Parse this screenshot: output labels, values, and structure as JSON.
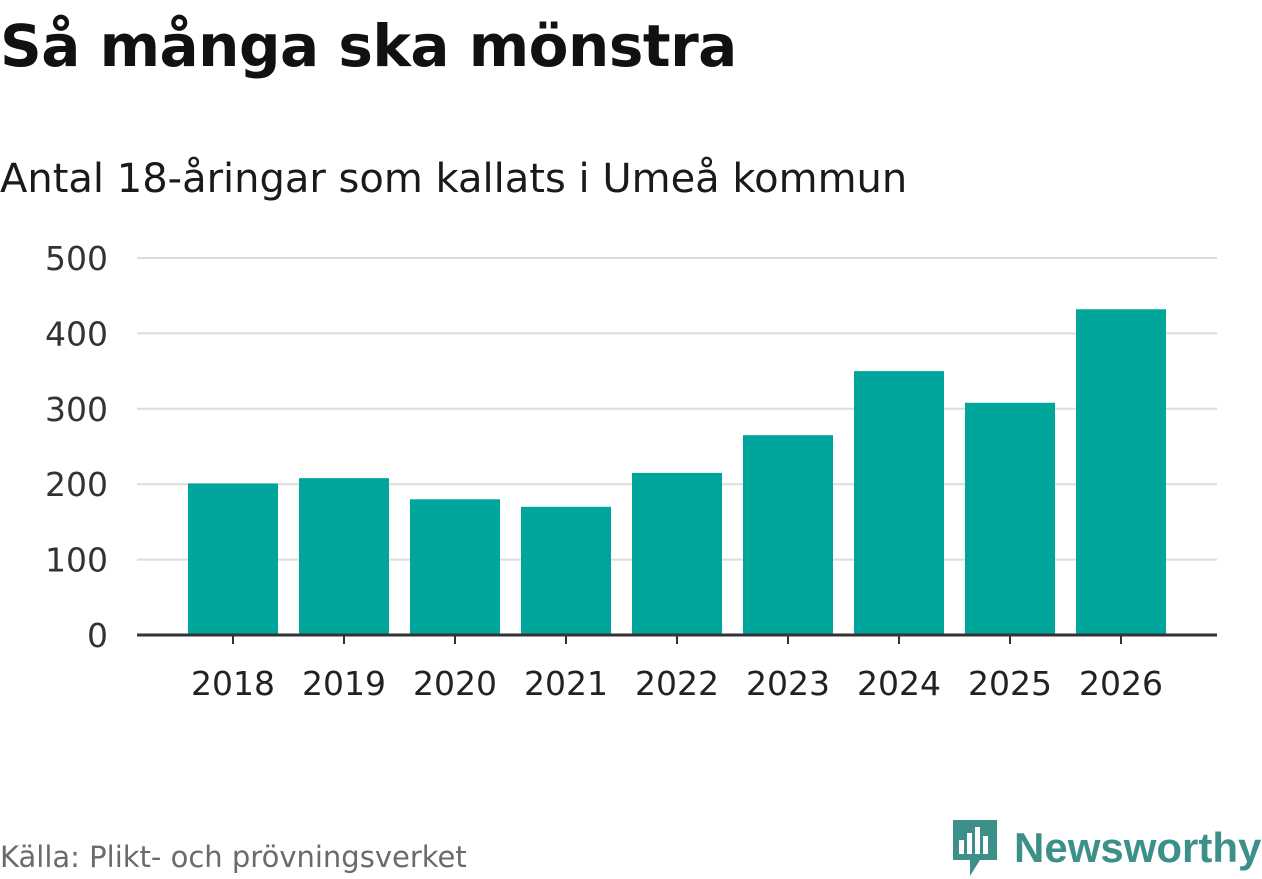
{
  "brand": {
    "name": "Newsworthy",
    "color": "#3d8f8a"
  },
  "source": "Källa: Plikt- och prövningsverket",
  "chart_data": {
    "type": "bar",
    "title": "Så många ska mönstra",
    "subtitle": "Antal 18-åringar som kallats i Umeå kommun",
    "xlabel": "",
    "ylabel": "",
    "categories": [
      "2018",
      "2019",
      "2020",
      "2021",
      "2022",
      "2023",
      "2024",
      "2025",
      "2026"
    ],
    "values": [
      201,
      208,
      180,
      170,
      215,
      265,
      350,
      308,
      432
    ],
    "ylim": [
      0,
      500
    ],
    "yticks": [
      0,
      100,
      200,
      300,
      400,
      500
    ],
    "grid": true,
    "legend": "none",
    "bar_color": "#00a69c"
  }
}
